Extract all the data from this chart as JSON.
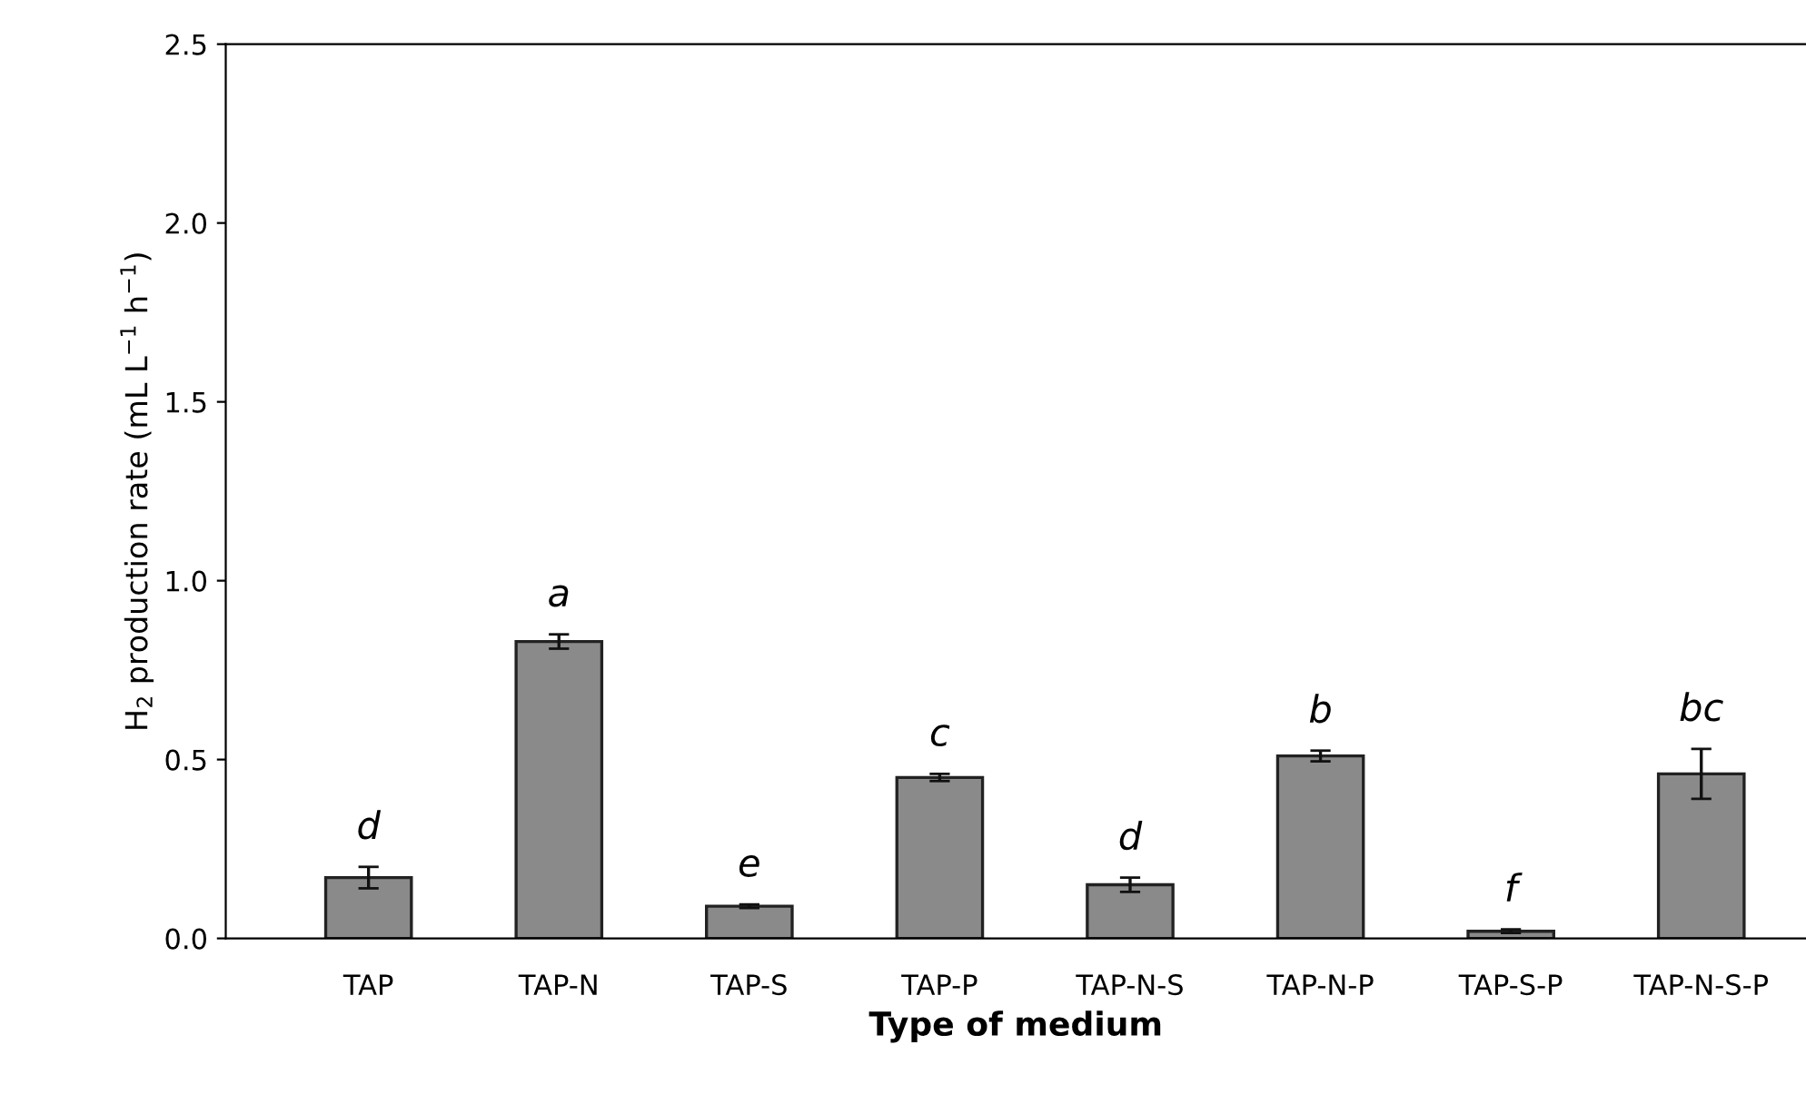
{
  "chart_data": {
    "type": "bar",
    "xlabel": "Type of medium",
    "ylabel": "H$_{2}$ production rate (mL L$^{−1}$ h$^{−1}$)",
    "categories": [
      "TAP",
      "TAP-N",
      "TAP-S",
      "TAP-P",
      "TAP-N-S",
      "TAP-N-P",
      "TAP-S-P",
      "TAP-N-S-P"
    ],
    "values": [
      0.17,
      0.83,
      0.09,
      0.45,
      0.15,
      0.51,
      0.02,
      0.46
    ],
    "errors": [
      0.03,
      0.02,
      0.005,
      0.01,
      0.02,
      0.015,
      0.005,
      0.07
    ],
    "color": "#8a8a8a",
    "ylim": [
      0,
      2.5
    ],
    "yticks": [
      {
        "value": 0,
        "label": "0.0"
      },
      {
        "value": 0.5,
        "label": "0.5"
      },
      {
        "value": 1,
        "label": "1.0"
      },
      {
        "value": 1.5,
        "label": "1.5"
      },
      {
        "value": 2,
        "label": "2.0"
      },
      {
        "value": 2.5,
        "label": "2.5"
      }
    ],
    "grid": false,
    "annotations": [
      {
        "text": "d",
        "x": "TAP",
        "y": 0.2
      },
      {
        "text": "a",
        "x": "TAP-N",
        "y": 0.85
      },
      {
        "text": "e",
        "x": "TAP-S",
        "y": 0.095
      },
      {
        "text": "c",
        "x": "TAP-P",
        "y": 0.46
      },
      {
        "text": "d",
        "x": "TAP-N-S",
        "y": 0.17
      },
      {
        "text": "b",
        "x": "TAP-N-P",
        "y": 0.525
      },
      {
        "text": "f",
        "x": "TAP-S-P",
        "y": 0.025
      },
      {
        "text": "bc",
        "x": "TAP-N-S-P",
        "y": 0.53
      }
    ]
  }
}
